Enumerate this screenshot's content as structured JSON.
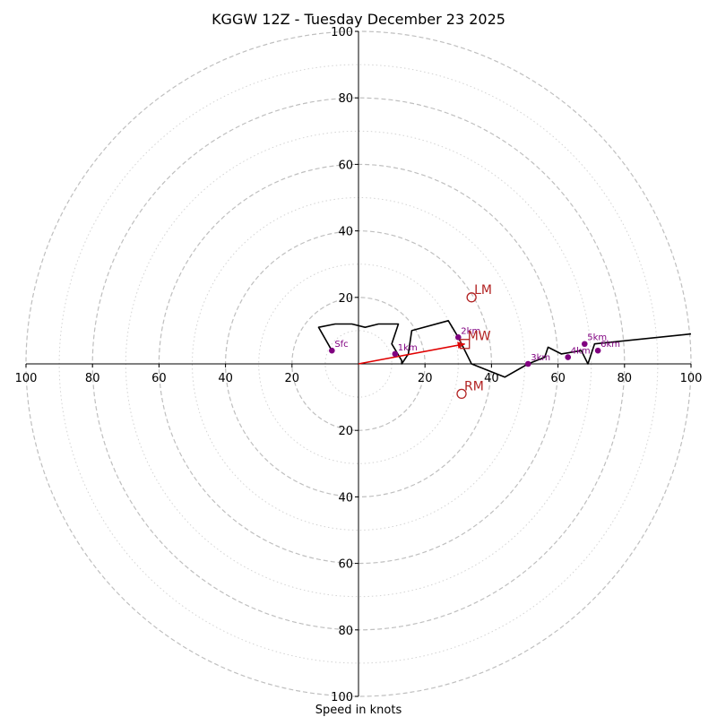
{
  "chart_data": {
    "type": "hodograph",
    "title": "KGGW 12Z - Tuesday December 23 2025",
    "xlabel": "Speed in knots",
    "rings_major": [
      20,
      40,
      60,
      80,
      100
    ],
    "rings_minor": [
      10,
      30,
      50,
      70,
      90
    ],
    "axis_tick_values": [
      20,
      40,
      60,
      80,
      100
    ],
    "axis_tick_labels": [
      "20",
      "40",
      "60",
      "80",
      "100"
    ],
    "range": [
      -100,
      100
    ],
    "colors": {
      "hodograph": "#000000",
      "height_marker": "#800080",
      "motion": "#b22222",
      "mean_wind_arrow": "#e00000",
      "ring_major": "#bfbfbf",
      "ring_minor": "#d3d3d3"
    },
    "hodograph_trace": [
      [
        -8,
        4
      ],
      [
        -12,
        11
      ],
      [
        -7,
        12
      ],
      [
        -2,
        12
      ],
      [
        2,
        11
      ],
      [
        6,
        12
      ],
      [
        12,
        12
      ],
      [
        10,
        6
      ],
      [
        13,
        1
      ],
      [
        13,
        0
      ],
      [
        15,
        3
      ],
      [
        16,
        10
      ],
      [
        27,
        13
      ],
      [
        30,
        8
      ],
      [
        34,
        0
      ],
      [
        44,
        -4
      ],
      [
        51,
        0
      ],
      [
        56,
        2
      ],
      [
        57,
        5
      ],
      [
        61,
        3
      ],
      [
        67,
        4
      ],
      [
        69,
        0
      ],
      [
        71,
        6
      ],
      [
        100,
        9
      ]
    ],
    "height_markers": [
      {
        "label": "Sfc",
        "u": -8,
        "v": 4
      },
      {
        "label": "1km",
        "u": 11,
        "v": 3
      },
      {
        "label": "2km",
        "u": 30,
        "v": 8
      },
      {
        "label": "3km",
        "u": 51,
        "v": 0
      },
      {
        "label": "4km",
        "u": 63,
        "v": 2
      },
      {
        "label": "5km",
        "u": 68,
        "v": 6
      },
      {
        "label": "6km",
        "u": 72,
        "v": 4
      }
    ],
    "storm_motion": [
      {
        "label": "LM",
        "u": 34,
        "v": 20,
        "marker": "circle"
      },
      {
        "label": "RM",
        "u": 31,
        "v": -9,
        "marker": "circle"
      },
      {
        "label": "MW",
        "u": 32,
        "v": 6,
        "marker": "square"
      }
    ],
    "mean_wind_vector": {
      "from": [
        0,
        0
      ],
      "to": [
        32,
        6
      ]
    }
  }
}
